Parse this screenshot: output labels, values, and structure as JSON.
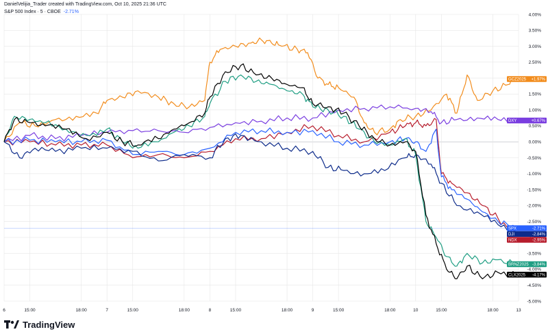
{
  "header": {
    "credit": "DanielVelijia_Trader created with TradingView.com, Oct 10, 2025 21:36 UTC",
    "symbol": "S&P 500 Index · 5 · CBOE",
    "symbol_change": "-2.71%"
  },
  "footer": {
    "brand": "TradingView"
  },
  "colors": {
    "SPX": "#2962ff",
    "DJI": "#0d2b8a",
    "NDX": "#b71c2c",
    "GCZ2025": "#f28c1c",
    "DXY": "#7a3ee0",
    "BRNZ2025": "#1f9e83",
    "CLX2025": "#000000",
    "grid": "#e6e6e6",
    "zero": "#b2b5be",
    "spx_price_line": "#2962ff"
  },
  "chart_data": {
    "type": "line",
    "title": "S&P 500 Index · 5 · CBOE",
    "ylabel": "",
    "xlabel": "",
    "ylim": [
      -5.0,
      4.0
    ],
    "y_ticks": [
      "4.00%",
      "3.50%",
      "3.00%",
      "2.50%",
      "2.00%",
      "1.50%",
      "1.00%",
      "0.50%",
      "0.00%",
      "-0.50%",
      "-1.00%",
      "-1.50%",
      "-2.00%",
      "-2.50%",
      "-3.00%",
      "-3.50%",
      "-4.00%",
      "-4.50%",
      "-5.00%"
    ],
    "y_tick_values": [
      4.0,
      3.5,
      3.0,
      2.5,
      2.0,
      1.5,
      1.0,
      0.5,
      0.0,
      -0.5,
      -1.0,
      -1.5,
      -2.0,
      -2.5,
      -3.0,
      -3.5,
      -4.0,
      -4.5,
      -5.0
    ],
    "x_ticks": [
      {
        "label": "6",
        "t": 0.0
      },
      {
        "label": "15:00",
        "t": 0.5
      },
      {
        "label": "18:00",
        "t": 1.5
      },
      {
        "label": "7",
        "t": 2.0
      },
      {
        "label": "15:00",
        "t": 2.5
      },
      {
        "label": "18:00",
        "t": 3.5
      },
      {
        "label": "8",
        "t": 4.0
      },
      {
        "label": "15:00",
        "t": 4.5
      },
      {
        "label": "18:00",
        "t": 5.5
      },
      {
        "label": "9",
        "t": 6.0
      },
      {
        "label": "15:00",
        "t": 6.5
      },
      {
        "label": "18:00",
        "t": 7.5
      },
      {
        "label": "10",
        "t": 8.0
      },
      {
        "label": "15:00",
        "t": 8.5
      },
      {
        "label": "18:00",
        "t": 9.5
      },
      {
        "label": "13",
        "t": 10.0
      }
    ],
    "grid": true,
    "legend": "right-axis tags",
    "series": [
      {
        "name": "GCZ2025",
        "last": "+1.97%",
        "values": [
          [
            0,
            0
          ],
          [
            0.3,
            0.6
          ],
          [
            0.6,
            0.5
          ],
          [
            1.0,
            0.7
          ],
          [
            1.4,
            0.8
          ],
          [
            1.8,
            0.9
          ],
          [
            2.0,
            1.3
          ],
          [
            2.3,
            1.4
          ],
          [
            2.6,
            1.6
          ],
          [
            3.0,
            1.4
          ],
          [
            3.3,
            1.2
          ],
          [
            3.6,
            1.1
          ],
          [
            3.9,
            1.3
          ],
          [
            4.0,
            2.5
          ],
          [
            4.2,
            2.9
          ],
          [
            4.5,
            3.0
          ],
          [
            4.8,
            3.1
          ],
          [
            5.0,
            3.2
          ],
          [
            5.2,
            3.1
          ],
          [
            5.4,
            3.0
          ],
          [
            5.7,
            2.9
          ],
          [
            5.9,
            2.8
          ],
          [
            6.1,
            2.0
          ],
          [
            6.3,
            1.8
          ],
          [
            6.5,
            1.7
          ],
          [
            6.8,
            1.4
          ],
          [
            7.0,
            0.6
          ],
          [
            7.2,
            0.3
          ],
          [
            7.5,
            0.4
          ],
          [
            7.7,
            0.7
          ],
          [
            8.0,
            0.8
          ],
          [
            8.3,
            1.0
          ],
          [
            8.6,
            1.5
          ],
          [
            8.8,
            0.9
          ],
          [
            9.0,
            2.1
          ],
          [
            9.2,
            1.3
          ],
          [
            9.5,
            1.6
          ],
          [
            9.8,
            1.8
          ],
          [
            9.95,
            1.97
          ]
        ]
      },
      {
        "name": "DXY",
        "last": "+0.67%",
        "values": [
          [
            0,
            0
          ],
          [
            0.5,
            0.2
          ],
          [
            1.0,
            0.1
          ],
          [
            1.5,
            0.2
          ],
          [
            2.0,
            0.3
          ],
          [
            2.5,
            0.35
          ],
          [
            3.0,
            0.35
          ],
          [
            3.5,
            0.3
          ],
          [
            4.0,
            0.45
          ],
          [
            4.5,
            0.6
          ],
          [
            5.0,
            0.65
          ],
          [
            5.5,
            0.75
          ],
          [
            6.0,
            0.75
          ],
          [
            6.5,
            1.0
          ],
          [
            7.0,
            1.05
          ],
          [
            7.5,
            1.1
          ],
          [
            8.0,
            1.05
          ],
          [
            8.3,
            0.95
          ],
          [
            8.5,
            0.6
          ],
          [
            8.8,
            0.7
          ],
          [
            9.2,
            0.75
          ],
          [
            9.6,
            0.7
          ],
          [
            9.95,
            0.67
          ]
        ]
      },
      {
        "name": "NDX",
        "last": "-2.95%",
        "values": [
          [
            0,
            0
          ],
          [
            0.5,
            0.0
          ],
          [
            1.0,
            -0.1
          ],
          [
            1.5,
            -0.1
          ],
          [
            2.0,
            -0.1
          ],
          [
            2.5,
            -0.5
          ],
          [
            3.0,
            -0.4
          ],
          [
            3.5,
            -0.5
          ],
          [
            4.0,
            -0.3
          ],
          [
            4.5,
            0.1
          ],
          [
            5.0,
            0.1
          ],
          [
            5.5,
            0.3
          ],
          [
            6.0,
            0.5
          ],
          [
            6.5,
            0.2
          ],
          [
            7.0,
            0.0
          ],
          [
            7.5,
            0.3
          ],
          [
            7.8,
            0.5
          ],
          [
            8.0,
            0.6
          ],
          [
            8.2,
            0.5
          ],
          [
            8.4,
            0.7
          ],
          [
            8.5,
            -1.0
          ],
          [
            8.7,
            -1.3
          ],
          [
            9.0,
            -1.6
          ],
          [
            9.3,
            -2.0
          ],
          [
            9.6,
            -2.4
          ],
          [
            9.95,
            -2.95
          ]
        ]
      },
      {
        "name": "SPX",
        "last": "-2.71%",
        "values": [
          [
            0,
            0
          ],
          [
            0.5,
            0.05
          ],
          [
            1.0,
            0.0
          ],
          [
            1.5,
            0.0
          ],
          [
            2.0,
            0.05
          ],
          [
            2.5,
            -0.4
          ],
          [
            3.0,
            -0.3
          ],
          [
            3.5,
            -0.4
          ],
          [
            4.0,
            -0.2
          ],
          [
            4.5,
            0.3
          ],
          [
            5.0,
            0.35
          ],
          [
            5.5,
            0.3
          ],
          [
            6.0,
            0.35
          ],
          [
            6.5,
            0.0
          ],
          [
            7.0,
            -0.1
          ],
          [
            7.5,
            0.0
          ],
          [
            7.8,
            0.1
          ],
          [
            8.0,
            0.0
          ],
          [
            8.2,
            -0.3
          ],
          [
            8.4,
            0.4
          ],
          [
            8.5,
            -1.1
          ],
          [
            8.7,
            -1.5
          ],
          [
            9.0,
            -1.8
          ],
          [
            9.3,
            -2.2
          ],
          [
            9.6,
            -2.5
          ],
          [
            9.95,
            -2.71
          ]
        ]
      },
      {
        "name": "DJI",
        "last": "-2.84%",
        "values": [
          [
            0,
            0
          ],
          [
            0.3,
            -0.5
          ],
          [
            0.6,
            -0.2
          ],
          [
            1.0,
            -0.3
          ],
          [
            1.5,
            -0.2
          ],
          [
            2.0,
            -0.2
          ],
          [
            2.5,
            -0.3
          ],
          [
            3.0,
            -0.6
          ],
          [
            3.5,
            -0.4
          ],
          [
            4.0,
            -0.5
          ],
          [
            4.3,
            0.1
          ],
          [
            4.6,
            0.2
          ],
          [
            5.0,
            0.0
          ],
          [
            5.5,
            -0.2
          ],
          [
            6.0,
            -0.3
          ],
          [
            6.3,
            -0.8
          ],
          [
            6.6,
            -0.9
          ],
          [
            7.0,
            -1.0
          ],
          [
            7.4,
            -0.9
          ],
          [
            7.8,
            -0.5
          ],
          [
            8.0,
            -0.4
          ],
          [
            8.3,
            -0.7
          ],
          [
            8.5,
            -1.3
          ],
          [
            8.8,
            -2.0
          ],
          [
            9.2,
            -2.2
          ],
          [
            9.6,
            -2.6
          ],
          [
            9.95,
            -2.84
          ]
        ]
      },
      {
        "name": "BRNZ2025",
        "last": "-3.84%",
        "values": [
          [
            0,
            0
          ],
          [
            0.2,
            0.8
          ],
          [
            0.5,
            0.7
          ],
          [
            0.8,
            0.6
          ],
          [
            1.2,
            0.4
          ],
          [
            1.6,
            0.2
          ],
          [
            2.0,
            0.4
          ],
          [
            2.3,
            0.0
          ],
          [
            2.6,
            -0.2
          ],
          [
            3.0,
            0.0
          ],
          [
            3.3,
            0.3
          ],
          [
            3.6,
            0.5
          ],
          [
            3.9,
            0.8
          ],
          [
            4.0,
            1.2
          ],
          [
            4.3,
            1.9
          ],
          [
            4.6,
            2.1
          ],
          [
            4.9,
            1.9
          ],
          [
            5.2,
            1.8
          ],
          [
            5.5,
            1.6
          ],
          [
            5.8,
            1.5
          ],
          [
            6.0,
            1.1
          ],
          [
            6.3,
            1.0
          ],
          [
            6.6,
            0.8
          ],
          [
            6.9,
            0.4
          ],
          [
            7.2,
            0.0
          ],
          [
            7.5,
            -0.1
          ],
          [
            7.8,
            0.1
          ],
          [
            8.0,
            -0.4
          ],
          [
            8.2,
            -2.5
          ],
          [
            8.4,
            -3.0
          ],
          [
            8.6,
            -3.6
          ],
          [
            8.8,
            -3.9
          ],
          [
            9.0,
            -3.5
          ],
          [
            9.3,
            -3.8
          ],
          [
            9.6,
            -3.7
          ],
          [
            9.95,
            -3.84
          ]
        ]
      },
      {
        "name": "CLX2025",
        "last": "-4.17%",
        "values": [
          [
            0,
            0
          ],
          [
            0.2,
            0.7
          ],
          [
            0.5,
            0.6
          ],
          [
            0.8,
            0.5
          ],
          [
            1.2,
            0.4
          ],
          [
            1.6,
            0.1
          ],
          [
            2.0,
            0.3
          ],
          [
            2.3,
            0.0
          ],
          [
            2.6,
            -0.1
          ],
          [
            3.0,
            0.1
          ],
          [
            3.3,
            0.4
          ],
          [
            3.6,
            0.6
          ],
          [
            3.9,
            0.9
          ],
          [
            4.0,
            1.4
          ],
          [
            4.3,
            2.2
          ],
          [
            4.6,
            2.4
          ],
          [
            4.9,
            2.1
          ],
          [
            5.2,
            2.0
          ],
          [
            5.5,
            1.8
          ],
          [
            5.8,
            1.7
          ],
          [
            6.0,
            1.2
          ],
          [
            6.3,
            1.1
          ],
          [
            6.6,
            0.9
          ],
          [
            6.9,
            0.5
          ],
          [
            7.2,
            0.1
          ],
          [
            7.5,
            -0.1
          ],
          [
            7.8,
            0.0
          ],
          [
            8.0,
            -0.3
          ],
          [
            8.2,
            -2.3
          ],
          [
            8.4,
            -3.2
          ],
          [
            8.6,
            -4.0
          ],
          [
            8.8,
            -4.3
          ],
          [
            9.0,
            -3.9
          ],
          [
            9.3,
            -4.3
          ],
          [
            9.6,
            -4.1
          ],
          [
            9.95,
            -4.17
          ]
        ]
      }
    ]
  }
}
